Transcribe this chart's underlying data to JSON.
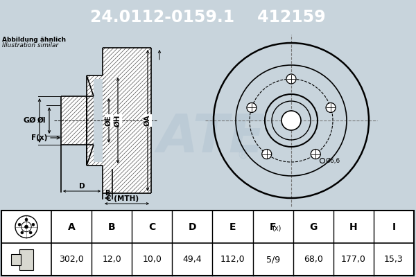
{
  "title_part_number": "24.0112-0159.1",
  "title_ref_number": "412159",
  "title_bg_color": "#0000cc",
  "title_text_color": "#ffffff",
  "subtitle_line1": "Abbildung ähnlich",
  "subtitle_line2": "Illustration similar",
  "bg_color": "#c8d4dc",
  "table_headers": [
    "A",
    "B",
    "C",
    "D",
    "E",
    "F(x)",
    "G",
    "H",
    "I"
  ],
  "table_values": [
    "302,0",
    "12,0",
    "10,0",
    "49,4",
    "112,0",
    "5/9",
    "68,0",
    "177,0",
    "15,3"
  ],
  "watermark_color": "#b8c8d4",
  "line_color": "#000000",
  "crosshair_color": "#777777",
  "bolt_hole_note": "Ø6,6",
  "hatch_color": "#555555",
  "white": "#ffffff",
  "gray_fill": "#e0e0d8"
}
